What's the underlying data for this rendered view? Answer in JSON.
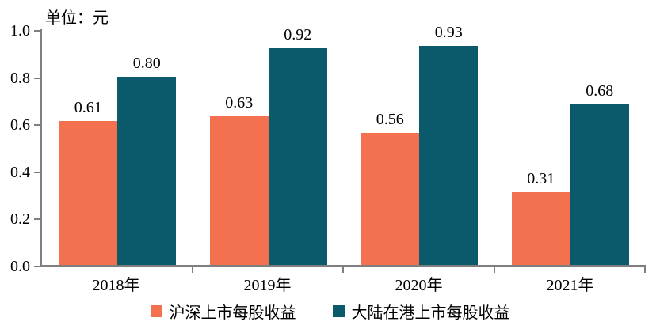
{
  "unit_label": "单位：元",
  "colors": {
    "series_a": "#F3714E",
    "series_b": "#0A5A6C",
    "axis": "#7F7F7F",
    "text": "#000000",
    "background": "#FFFFFF"
  },
  "chart_data": {
    "type": "bar",
    "title": "单位：元",
    "categories": [
      "2018年",
      "2019年",
      "2020年",
      "2021年"
    ],
    "series": [
      {
        "name": "沪深上市每股收益",
        "color": "#F3714E",
        "values": [
          0.61,
          0.63,
          0.56,
          0.31
        ]
      },
      {
        "name": "大陆在港上市每股收益",
        "color": "#0A5A6C",
        "values": [
          0.8,
          0.92,
          0.93,
          0.68
        ]
      }
    ],
    "value_label_decimals": 2,
    "xlabel": "",
    "ylabel": "",
    "ylim": [
      0,
      1.0
    ],
    "yticks": [
      "0.0",
      "0.2",
      "0.4",
      "0.6",
      "0.8",
      "1.0"
    ],
    "grid": false,
    "legend_position": "bottom"
  }
}
